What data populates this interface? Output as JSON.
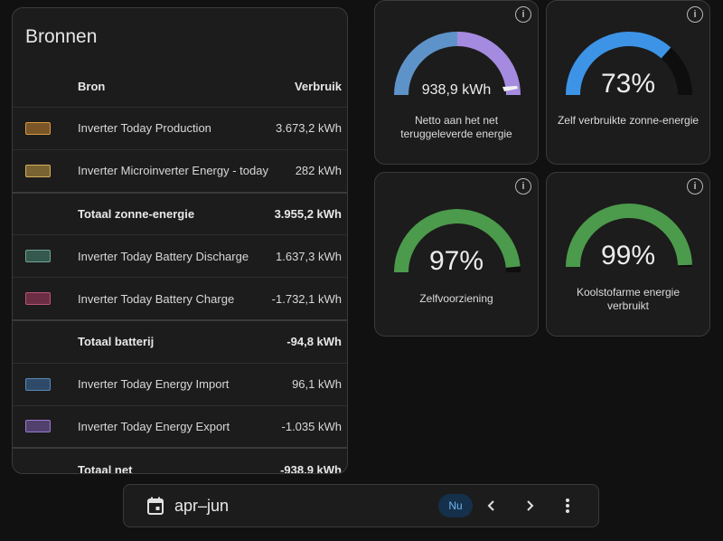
{
  "sources": {
    "title": "Bronnen",
    "col_source": "Bron",
    "col_usage": "Verbruik",
    "rows": [
      {
        "name": "Inverter Today Production",
        "value": "3.673,2 kWh",
        "swatch_bg": "#7a5527",
        "swatch_border": "#d79a3f"
      },
      {
        "name": "Inverter Microinverter Energy - today",
        "value": "282 kWh",
        "swatch_bg": "#7a6333",
        "swatch_border": "#d4ad59"
      }
    ],
    "solar_total": {
      "name": "Totaal zonne-energie",
      "value": "3.955,2 kWh"
    },
    "battery_rows": [
      {
        "name": "Inverter Today Battery Discharge",
        "value": "1.637,3 kWh",
        "swatch_bg": "#35584f",
        "swatch_border": "#6ea595"
      },
      {
        "name": "Inverter Today Battery Charge",
        "value": "-1.732,1 kWh",
        "swatch_bg": "#6b2d44",
        "swatch_border": "#b85478"
      }
    ],
    "battery_total": {
      "name": "Totaal batterij",
      "value": "-94,8 kWh"
    },
    "grid_rows": [
      {
        "name": "Inverter Today Energy Import",
        "value": "96,1 kWh",
        "swatch_bg": "#2e4a68",
        "swatch_border": "#5888b8"
      },
      {
        "name": "Inverter Today Energy Export",
        "value": "-1.035 kWh",
        "swatch_bg": "#52406e",
        "swatch_border": "#9a7ad0"
      }
    ],
    "grid_total": {
      "name": "Totaal net",
      "value": "-938,9 kWh"
    }
  },
  "gauges": {
    "net": {
      "value": "938,9 kWh",
      "label": "Netto aan het net teruggeleverde energie",
      "fraction_left": 0.5,
      "color_left": "#5e93c9",
      "color_right": "#a58be0"
    },
    "self_consumed": {
      "value": "73%",
      "fraction": 0.73,
      "label": "Zelf verbruikte zonne-energie",
      "color": "#3d94e6"
    },
    "self_sufficiency": {
      "value": "97%",
      "fraction": 0.97,
      "label": "Zelfvoorziening",
      "color": "#4c9a4c"
    },
    "low_carbon": {
      "value": "99%",
      "fraction": 0.99,
      "label": "Koolstofarme energie verbruikt",
      "color": "#4c9a4c"
    }
  },
  "info_icon": "i",
  "toolbar": {
    "period": "apr–jun",
    "now_label": "Nu"
  }
}
